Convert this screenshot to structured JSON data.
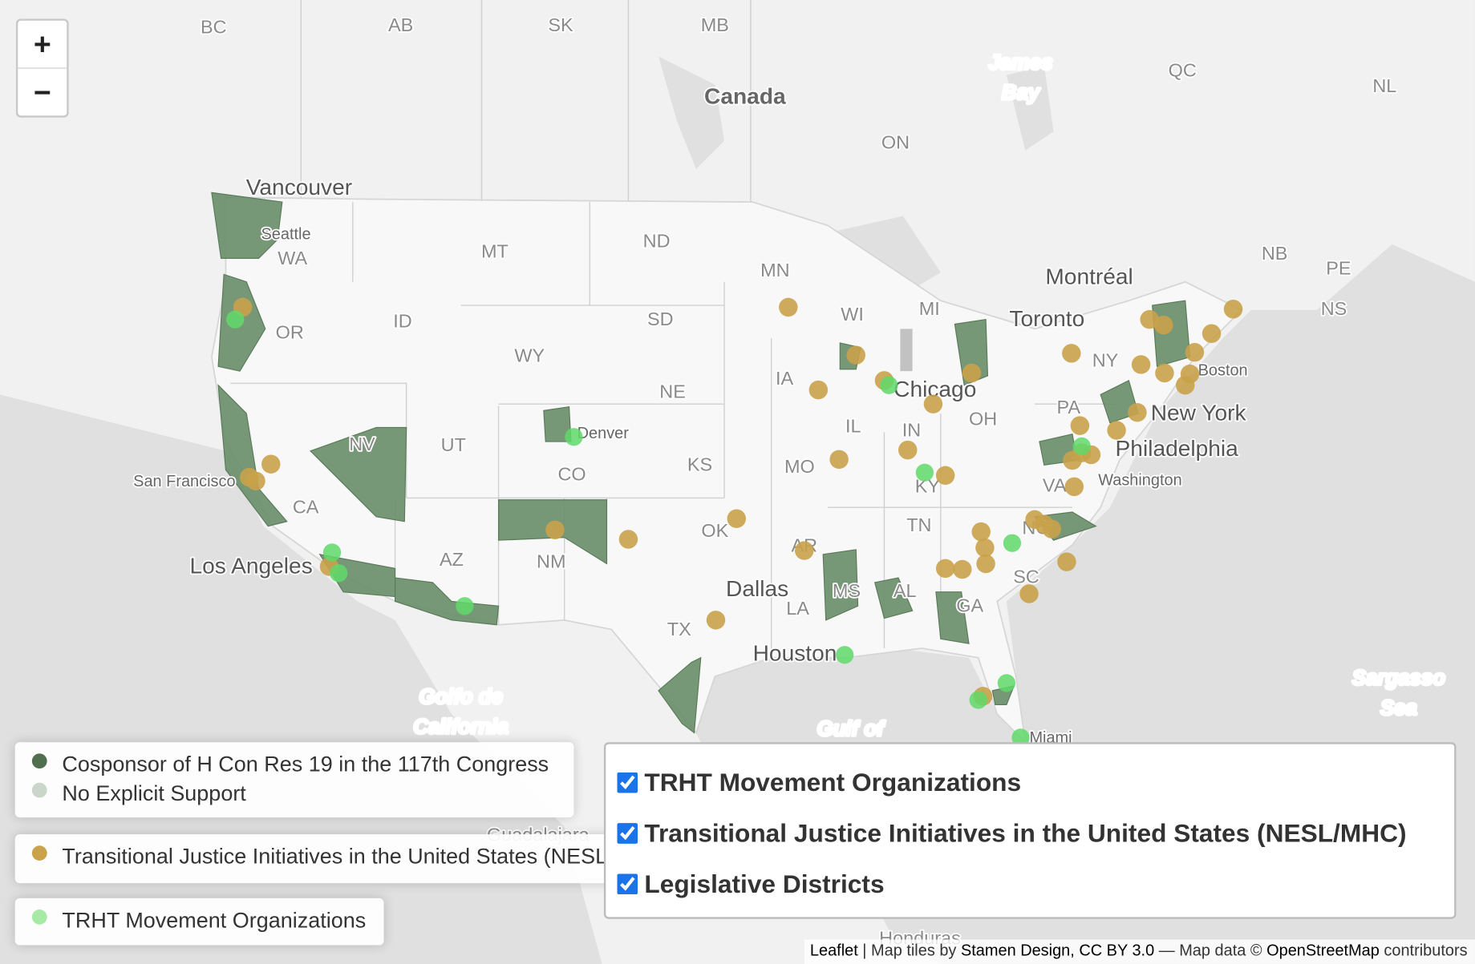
{
  "zoom": {
    "in": "+",
    "out": "−"
  },
  "map_labels": [
    "BC",
    "AB",
    "SK",
    "MB",
    "Canada",
    "James",
    "Bay",
    "QC",
    "NL",
    "ON",
    "Vancouver",
    "Seattle",
    "WA",
    "MT",
    "ND",
    "MN",
    "NB",
    "PE",
    "NS",
    "Montréal",
    "Toronto",
    "OR",
    "ID",
    "SD",
    "WI",
    "MI",
    "NY",
    "Boston",
    "WY",
    "IA",
    "Chicago",
    "PA",
    "New York",
    "Philadelphia",
    "NE",
    "IL",
    "OH",
    "Denver",
    "NV",
    "UT",
    "San Francisco",
    "KS",
    "MO",
    "IN",
    "CO",
    "KY",
    "Washington",
    "CA",
    "VA",
    "OK",
    "TN",
    "NC",
    "AZ",
    "NM",
    "AR",
    "Los Angeles",
    "SC",
    "MS",
    "AL",
    "GA",
    "Dallas",
    "LA",
    "TX",
    "Houston",
    "Golfo de",
    "California",
    "Gulf of",
    "Sargasso",
    "Sea",
    "Miami",
    "Guadalajara",
    "Honduras"
  ],
  "legends": [
    [
      {
        "label": "Cosponsor of H Con Res 19 in the 117th Congress",
        "color": "#4f6f4f"
      },
      {
        "label": "No Explicit Support",
        "color": "#c9d6c9"
      }
    ],
    [
      {
        "label": "Transitional Justice Initiatives in the United States (NESL/MHC)",
        "color": "#c9a24a"
      }
    ],
    [
      {
        "label": "TRHT Movement Organizations",
        "color": "#a6eaa6"
      }
    ]
  ],
  "layers": [
    "TRHT Movement Organizations",
    "Transitional Justice Initiatives in the United States (NESL/MHC)",
    "Legislative Districts"
  ],
  "attribution": [
    "Leaflet",
    " | Map tiles by ",
    "Stamen Design, CC BY 3.0",
    " — Map data © ",
    "OpenStreetMap",
    " contributors"
  ]
}
